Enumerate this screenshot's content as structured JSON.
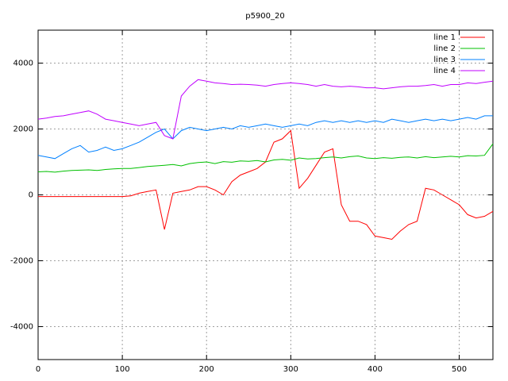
{
  "chart_data": {
    "type": "line",
    "title": "p5900_20",
    "x": [
      0,
      10,
      20,
      30,
      40,
      50,
      60,
      70,
      80,
      90,
      100,
      110,
      120,
      130,
      140,
      150,
      160,
      170,
      180,
      190,
      200,
      210,
      220,
      230,
      240,
      250,
      260,
      270,
      280,
      290,
      300,
      310,
      320,
      330,
      340,
      350,
      360,
      370,
      380,
      390,
      400,
      410,
      420,
      430,
      440,
      450,
      460,
      470,
      480,
      490,
      500,
      510,
      520,
      530,
      540
    ],
    "series": [
      {
        "name": "line 1",
        "color": "#ff0000",
        "values": [
          -50,
          -50,
          -50,
          -50,
          -50,
          -50,
          -50,
          -50,
          -50,
          -50,
          -50,
          -30,
          50,
          100,
          150,
          -1050,
          50,
          100,
          150,
          250,
          250,
          150,
          0,
          400,
          600,
          700,
          800,
          1000,
          1600,
          1700,
          1950,
          200,
          500,
          900,
          1300,
          1400,
          -300,
          -800,
          -800,
          -900,
          -1250,
          -1300,
          -1350,
          -1100,
          -900,
          -800,
          200,
          150,
          0,
          -150,
          -300,
          -600,
          -700,
          -650,
          -500
        ]
      },
      {
        "name": "line 2",
        "color": "#00c000",
        "values": [
          700,
          710,
          690,
          720,
          740,
          750,
          760,
          740,
          770,
          790,
          800,
          800,
          830,
          860,
          880,
          900,
          920,
          880,
          950,
          980,
          1000,
          950,
          1010,
          990,
          1030,
          1020,
          1040,
          1000,
          1060,
          1080,
          1050,
          1120,
          1090,
          1100,
          1130,
          1150,
          1120,
          1160,
          1180,
          1120,
          1100,
          1130,
          1110,
          1140,
          1150,
          1120,
          1160,
          1130,
          1150,
          1170,
          1150,
          1190,
          1180,
          1200,
          1550
        ]
      },
      {
        "name": "line 3",
        "color": "#0080ff",
        "values": [
          1200,
          1150,
          1100,
          1250,
          1400,
          1500,
          1300,
          1350,
          1450,
          1350,
          1400,
          1500,
          1600,
          1750,
          1900,
          2000,
          1700,
          1950,
          2050,
          2000,
          1950,
          2000,
          2050,
          2000,
          2100,
          2050,
          2100,
          2150,
          2100,
          2050,
          2100,
          2150,
          2100,
          2200,
          2250,
          2200,
          2250,
          2200,
          2250,
          2200,
          2250,
          2200,
          2300,
          2250,
          2200,
          2250,
          2300,
          2250,
          2300,
          2250,
          2300,
          2350,
          2300,
          2400,
          2400
        ]
      },
      {
        "name": "line 4",
        "color": "#c000ff",
        "values": [
          2300,
          2330,
          2380,
          2400,
          2450,
          2500,
          2550,
          2450,
          2300,
          2250,
          2200,
          2150,
          2100,
          2150,
          2200,
          1800,
          1700,
          3000,
          3300,
          3500,
          3450,
          3400,
          3380,
          3350,
          3360,
          3350,
          3330,
          3300,
          3350,
          3380,
          3400,
          3380,
          3350,
          3300,
          3350,
          3300,
          3280,
          3300,
          3280,
          3250,
          3250,
          3220,
          3250,
          3280,
          3300,
          3300,
          3320,
          3350,
          3300,
          3350,
          3350,
          3400,
          3380,
          3420,
          3450
        ]
      }
    ],
    "xlim": [
      0,
      540
    ],
    "ylim": [
      -5000,
      5000
    ],
    "xticks": [
      0,
      100,
      200,
      300,
      400,
      500
    ],
    "yticks": [
      -4000,
      -2000,
      0,
      2000,
      4000
    ],
    "grid": true,
    "legend": "upper right"
  }
}
